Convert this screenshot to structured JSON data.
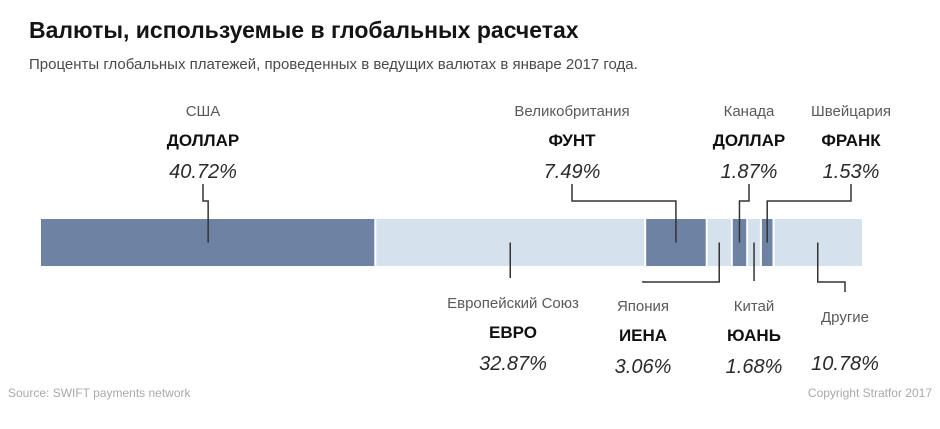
{
  "header": {
    "title": "Валюты, используемые в глобальных расчетах",
    "subtitle": "Проценты глобальных платежей, проведенных в ведущих валютах в январе 2017 года."
  },
  "footer": {
    "source": "Source: SWIFT payments network",
    "copyright": "Copyright Stratfor 2017"
  },
  "colors": {
    "highlight": "#6e82a3",
    "light": "#d5e1ed",
    "leader": "#333333"
  },
  "chart_data": {
    "type": "bar",
    "orientation": "horizontal-stacked",
    "unit": "%",
    "total": 100,
    "segments": [
      {
        "region": "США",
        "currency": "ДОЛЛАР",
        "value": 40.72,
        "label": "40.72%",
        "highlight": true,
        "label_side": "top"
      },
      {
        "region": "Европейский Союз",
        "currency": "ЕВРО",
        "value": 32.87,
        "label": "32.87%",
        "highlight": false,
        "label_side": "bottom"
      },
      {
        "region": "Великобритания",
        "currency": "ФУНТ",
        "value": 7.49,
        "label": "7.49%",
        "highlight": true,
        "label_side": "top"
      },
      {
        "region": "Япония",
        "currency": "ИЕНА",
        "value": 3.06,
        "label": "3.06%",
        "highlight": false,
        "label_side": "bottom"
      },
      {
        "region": "Канада",
        "currency": "ДОЛЛАР",
        "value": 1.87,
        "label": "1.87%",
        "highlight": true,
        "label_side": "top"
      },
      {
        "region": "Китай",
        "currency": "ЮАНЬ",
        "value": 1.68,
        "label": "1.68%",
        "highlight": false,
        "label_side": "bottom"
      },
      {
        "region": "Швейцария",
        "currency": "ФРАНК",
        "value": 1.53,
        "label": "1.53%",
        "highlight": true,
        "label_side": "top"
      },
      {
        "region": "Другие",
        "currency": "",
        "value": 10.78,
        "label": "10.78%",
        "highlight": false,
        "label_side": "bottom"
      }
    ]
  }
}
